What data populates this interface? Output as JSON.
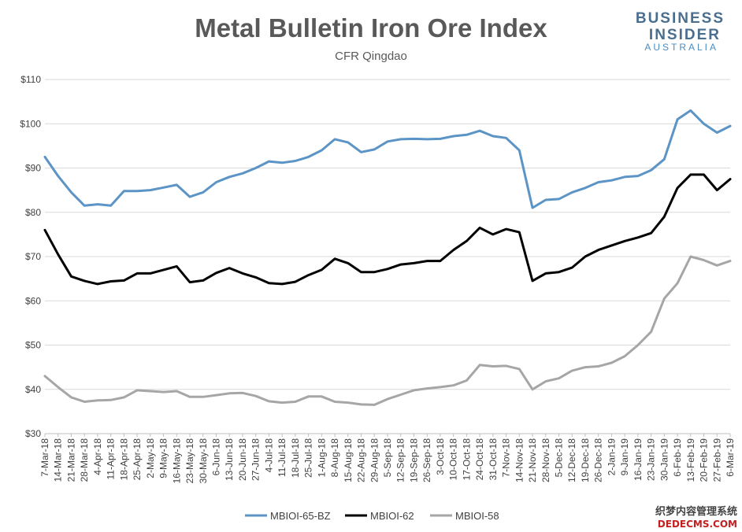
{
  "logo": {
    "line1": "BUSINESS",
    "line2": "INSIDER",
    "line3": "AUSTRALIA"
  },
  "watermark": {
    "line1": "织梦内容管理系统",
    "line2": "DEDECMS.COM"
  },
  "colors": {
    "series1": "#5b94c5",
    "series2": "#000000",
    "series3": "#a6a6a6",
    "grid": "#d9d9d9",
    "title": "#595959"
  },
  "chart_data": {
    "type": "line",
    "title": "Metal Bulletin Iron Ore Index",
    "subtitle": "CFR Qingdao",
    "xlabel": "",
    "ylabel": "",
    "ylim": [
      30,
      110
    ],
    "yticks": [
      30,
      40,
      50,
      60,
      70,
      80,
      90,
      100,
      110
    ],
    "ytick_labels": [
      "$30",
      "$40",
      "$50",
      "$60",
      "$70",
      "$80",
      "$90",
      "$100",
      "$110"
    ],
    "grid": "horizontal",
    "legend_position": "bottom",
    "x_tick_labels": [
      "7-Mar-18",
      "14-Mar-18",
      "21-Mar-18",
      "28-Mar-18",
      "4-Apr-18",
      "11-Apr-18",
      "18-Apr-18",
      "25-Apr-18",
      "2-May-18",
      "9-May-18",
      "16-May-18",
      "23-May-18",
      "30-May-18",
      "6-Jun-18",
      "13-Jun-18",
      "20-Jun-18",
      "27-Jun-18",
      "4-Jul-18",
      "11-Jul-18",
      "18-Jul-18",
      "25-Jul-18",
      "1-Aug-18",
      "8-Aug-18",
      "15-Aug-18",
      "22-Aug-18",
      "29-Aug-18",
      "5-Sep-18",
      "12-Sep-18",
      "19-Sep-18",
      "26-Sep-18",
      "3-Oct-18",
      "10-Oct-18",
      "17-Oct-18",
      "24-Oct-18",
      "31-Oct-18",
      "7-Nov-18",
      "14-Nov-18",
      "21-Nov-18",
      "28-Nov-18",
      "5-Dec-18",
      "12-Dec-18",
      "19-Dec-18",
      "26-Dec-18",
      "2-Jan-19",
      "9-Jan-19",
      "16-Jan-19",
      "23-Jan-19",
      "30-Jan-19",
      "6-Feb-19",
      "13-Feb-19",
      "20-Feb-19",
      "27-Feb-19",
      "6-Mar-19"
    ],
    "series": [
      {
        "name": "MBIOI-65-BZ",
        "values": [
          92.5,
          88.2,
          84.5,
          81.5,
          81.8,
          81.5,
          84.8,
          84.8,
          85.0,
          85.6,
          86.2,
          83.5,
          84.5,
          86.8,
          88.0,
          88.8,
          90.0,
          91.5,
          91.2,
          91.6,
          92.5,
          94.0,
          96.5,
          95.8,
          93.6,
          94.2,
          96.0,
          96.5,
          96.6,
          96.5,
          96.6,
          97.2,
          97.5,
          98.4,
          97.2,
          96.8,
          94.0,
          81.0,
          82.8,
          83.0,
          84.5,
          85.5,
          86.8,
          87.2,
          88.0,
          88.2,
          89.5,
          92.0,
          101.0,
          103.0,
          100.0,
          98.0,
          99.5
        ]
      },
      {
        "name": "MBIOI-62",
        "values": [
          76.0,
          70.5,
          65.5,
          64.5,
          63.8,
          64.4,
          64.6,
          66.2,
          66.2,
          67.0,
          67.8,
          64.2,
          64.6,
          66.3,
          67.4,
          66.2,
          65.3,
          64.0,
          63.8,
          64.3,
          65.8,
          67.0,
          69.5,
          68.5,
          66.5,
          66.5,
          67.2,
          68.2,
          68.5,
          69.0,
          69.0,
          71.5,
          73.5,
          76.5,
          75.0,
          76.2,
          75.5,
          64.5,
          66.2,
          66.5,
          67.5,
          70.0,
          71.5,
          72.5,
          73.5,
          74.3,
          75.3,
          79.0,
          85.5,
          88.5,
          88.5,
          85.0,
          87.5
        ]
      },
      {
        "name": "MBIOI-58",
        "values": [
          43.0,
          40.5,
          38.2,
          37.2,
          37.5,
          37.6,
          38.2,
          39.8,
          39.6,
          39.4,
          39.6,
          38.3,
          38.3,
          38.7,
          39.1,
          39.2,
          38.5,
          37.3,
          37.0,
          37.2,
          38.4,
          38.4,
          37.2,
          37.0,
          36.6,
          36.5,
          37.8,
          38.8,
          39.8,
          40.2,
          40.5,
          40.9,
          42.0,
          45.5,
          45.2,
          45.3,
          44.6,
          40.0,
          41.8,
          42.5,
          44.2,
          45.0,
          45.2,
          46.0,
          47.5,
          50.0,
          53.0,
          60.5,
          64.0,
          70.0,
          69.2,
          68.0,
          69.0
        ]
      }
    ]
  }
}
